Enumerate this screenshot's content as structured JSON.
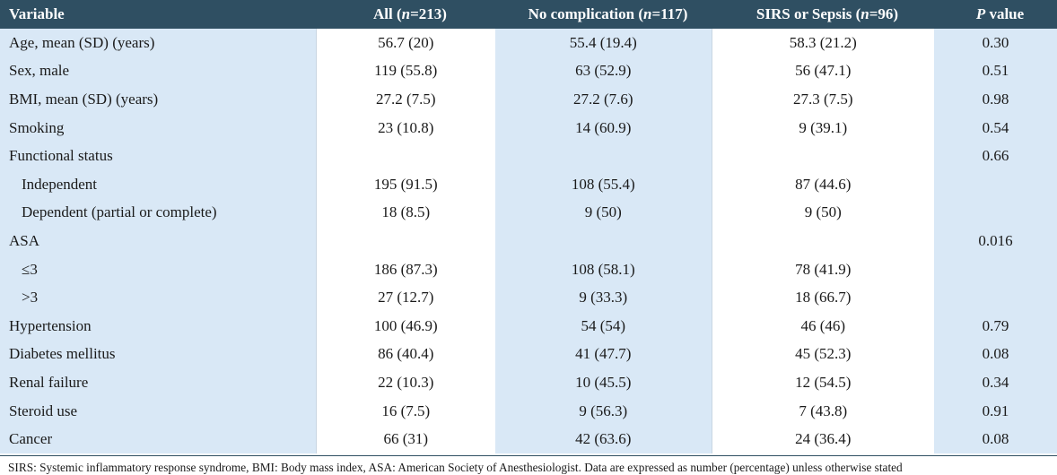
{
  "header": {
    "variable": "Variable",
    "all_label": "All (",
    "all_n": "n",
    "all_val": "=213)",
    "nocomp_label": "No complication (",
    "nocomp_n": "n",
    "nocomp_val": "=117)",
    "sirs_label": "SIRS or Sepsis (",
    "sirs_n": "n",
    "sirs_val": "=96)",
    "p_italic": "P",
    "p_rest": " value"
  },
  "rows": [
    {
      "variable": "Age, mean (SD) (years)",
      "all": "56.7 (20)",
      "nocomp": "55.4 (19.4)",
      "sirs": "58.3 (21.2)",
      "p": "0.30"
    },
    {
      "variable": "Sex, male",
      "all": "119 (55.8)",
      "nocomp": "63 (52.9)",
      "sirs": "56 (47.1)",
      "p": "0.51"
    },
    {
      "variable": "BMI, mean (SD) (years)",
      "all": "27.2 (7.5)",
      "nocomp": "27.2 (7.6)",
      "sirs": "27.3 (7.5)",
      "p": "0.98"
    },
    {
      "variable": "Smoking",
      "all": "23 (10.8)",
      "nocomp": "14 (60.9)",
      "sirs": "9 (39.1)",
      "p": "0.54"
    },
    {
      "variable": "Functional status",
      "all": "",
      "nocomp": "",
      "sirs": "",
      "p": "0.66"
    },
    {
      "variable": "Independent",
      "all": "195 (91.5)",
      "nocomp": "108 (55.4)",
      "sirs": "87 (44.6)",
      "p": ""
    },
    {
      "variable": "Dependent (partial or complete)",
      "all": "18 (8.5)",
      "nocomp": "9 (50)",
      "sirs": "9 (50)",
      "p": ""
    },
    {
      "variable": "ASA",
      "all": "",
      "nocomp": "",
      "sirs": "",
      "p": "0.016"
    },
    {
      "variable": "≤3",
      "all": "186 (87.3)",
      "nocomp": "108 (58.1)",
      "sirs": "78 (41.9)",
      "p": ""
    },
    {
      "variable": ">3",
      "all": "27 (12.7)",
      "nocomp": "9 (33.3)",
      "sirs": "18 (66.7)",
      "p": ""
    },
    {
      "variable": "Hypertension",
      "all": "100 (46.9)",
      "nocomp": "54 (54)",
      "sirs": "46 (46)",
      "p": "0.79"
    },
    {
      "variable": "Diabetes mellitus",
      "all": "86 (40.4)",
      "nocomp": "41 (47.7)",
      "sirs": "45 (52.3)",
      "p": "0.08"
    },
    {
      "variable": "Renal failure",
      "all": "22 (10.3)",
      "nocomp": "10 (45.5)",
      "sirs": "12 (54.5)",
      "p": "0.34"
    },
    {
      "variable": "Steroid use",
      "all": "16 (7.5)",
      "nocomp": "9 (56.3)",
      "sirs": "7 (43.8)",
      "p": "0.91"
    },
    {
      "variable": "Cancer",
      "all": "66 (31)",
      "nocomp": "42 (63.6)",
      "sirs": "24 (36.4)",
      "p": "0.08"
    }
  ],
  "footnote": "SIRS: Systemic inflammatory response syndrome, BMI: Body mass index, ASA: American Society of Anesthesiologist. Data are expressed as number (percentage) unless otherwise stated",
  "colors": {
    "header_bg": "#2f4f62",
    "shade": "#d9e8f6"
  }
}
